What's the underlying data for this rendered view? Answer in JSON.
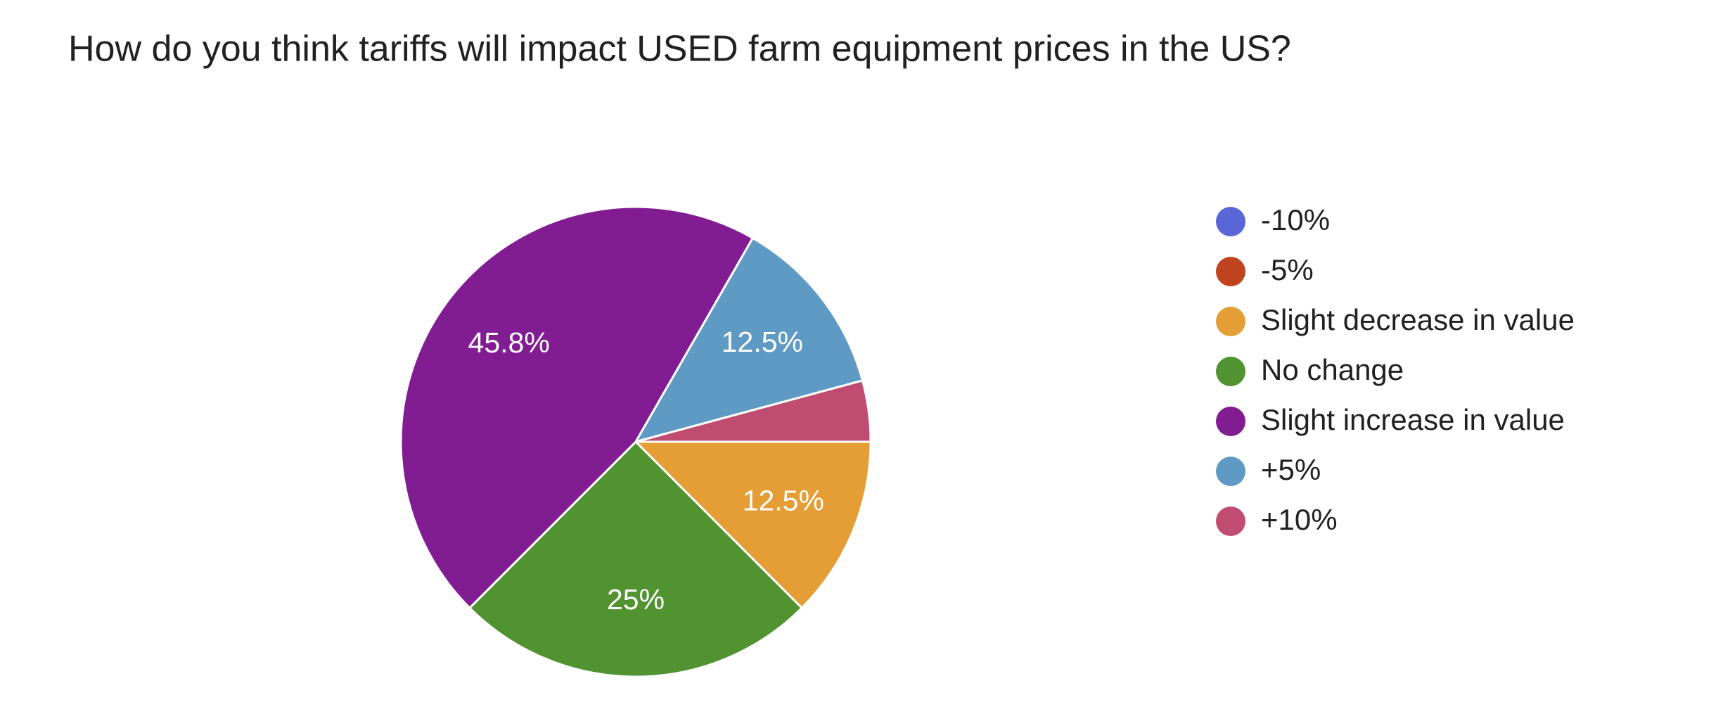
{
  "chart_data": {
    "type": "pie",
    "title": "How do you think tariffs will impact USED farm equipment prices in the US?",
    "categories": [
      "-10%",
      "-5%",
      "Slight decrease in value",
      "No change",
      "Slight increase in value",
      "+5%",
      "+10%"
    ],
    "values": [
      0,
      0,
      12.5,
      25,
      45.8,
      12.5,
      4.2
    ],
    "value_labels": [
      null,
      null,
      "12.5%",
      "25%",
      "45.8%",
      "12.5%",
      null
    ],
    "colors": [
      "#5867d5",
      "#c0431f",
      "#e49e35",
      "#519331",
      "#811c92",
      "#5f9ac4",
      "#c04c72"
    ],
    "legend": "right"
  }
}
